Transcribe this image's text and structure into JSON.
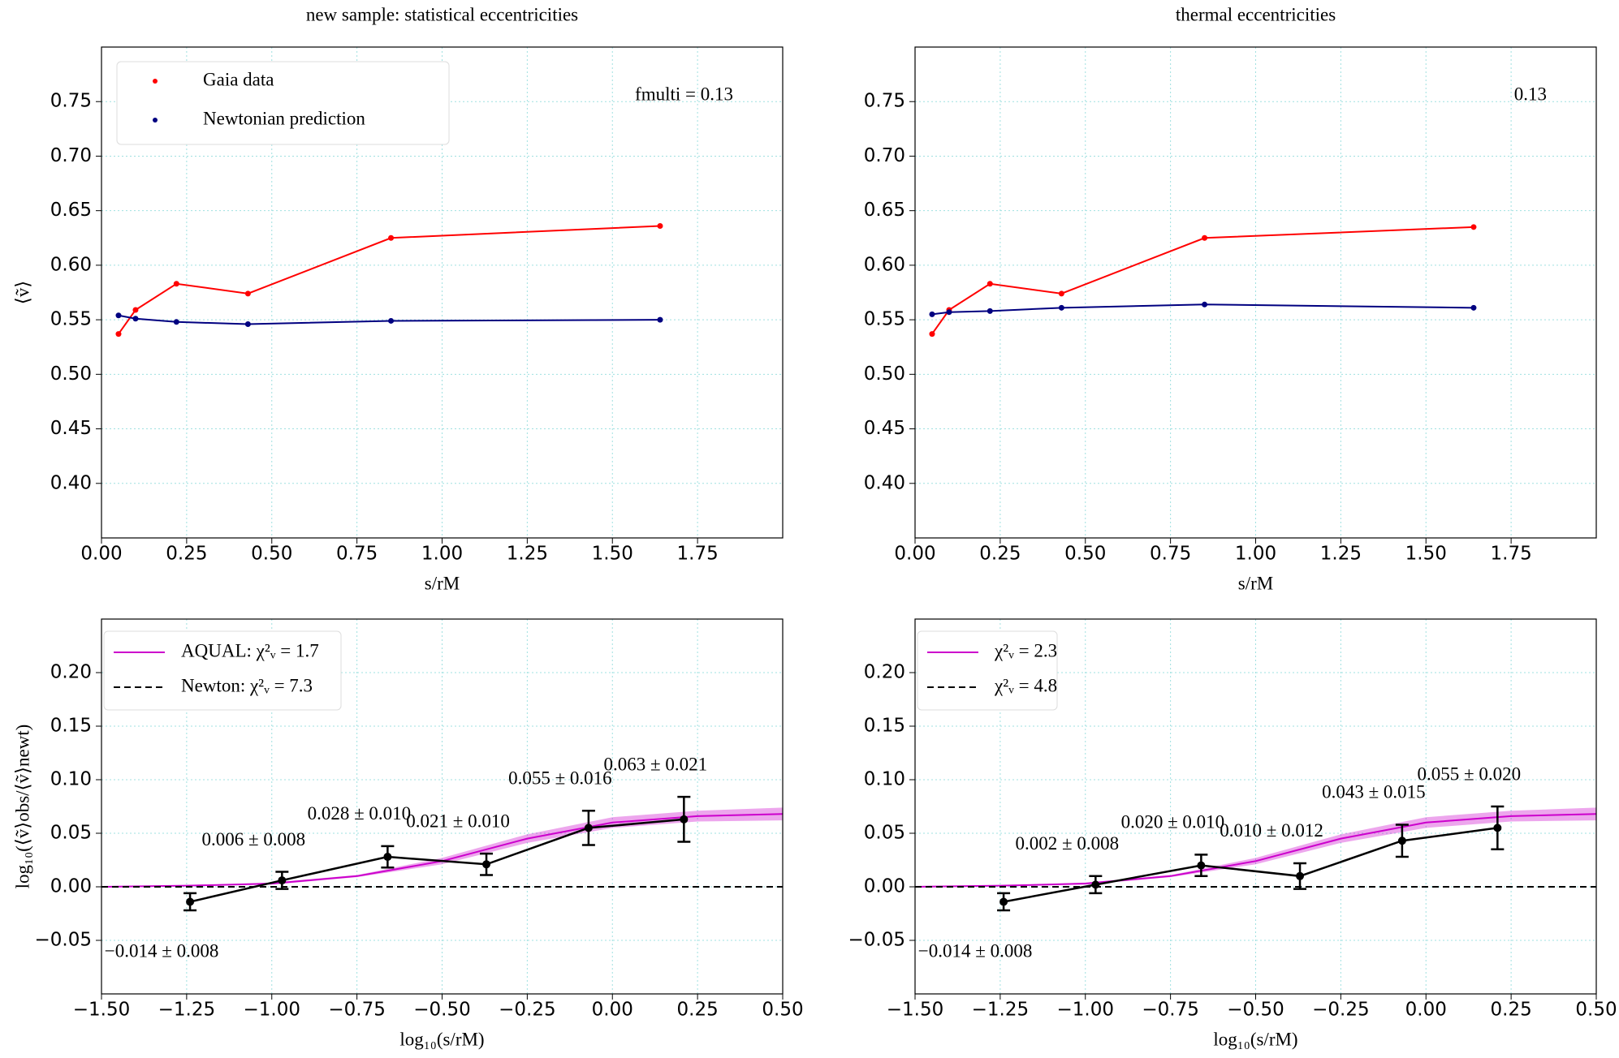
{
  "chart_data": [
    {
      "type": "line",
      "title": "new sample: statistical eccentricities",
      "ylabel": "⟨ṽ⟩",
      "xlabel": "s/rM",
      "annotation": "fmulti = 0.13",
      "legend": "upper left",
      "grid": true,
      "xlim": [
        0,
        2
      ],
      "ylim": [
        0.35,
        0.8
      ],
      "xticks": [
        {
          "value": 0,
          "label": "0.00"
        },
        0.25,
        {
          "value": 0.5,
          "label": "0.50"
        },
        0.75,
        {
          "value": 1,
          "label": "1.00"
        },
        1.25,
        {
          "value": 1.5,
          "label": "1.50"
        },
        1.75
      ],
      "yticks": [
        {
          "value": 0.4,
          "label": "0.40"
        },
        0.45,
        {
          "value": 0.5,
          "label": "0.50"
        },
        0.55,
        {
          "value": 0.6,
          "label": "0.60"
        },
        0.65,
        {
          "value": 0.7,
          "label": "0.70"
        },
        0.75
      ],
      "x": [
        0.05,
        0.1,
        0.22,
        0.43,
        0.85,
        1.64
      ],
      "series": [
        {
          "name": "Gaia data",
          "color": "#ff0000",
          "values": [
            0.537,
            0.559,
            0.583,
            0.574,
            0.625,
            0.636
          ]
        },
        {
          "name": "Newtonian prediction",
          "color": "#000080",
          "values": [
            0.554,
            0.551,
            0.548,
            0.546,
            0.549,
            0.55
          ]
        }
      ]
    },
    {
      "type": "line",
      "title": "thermal eccentricities",
      "annotation": "0.13",
      "xlabel": "s/rM",
      "grid": true,
      "xlim": [
        0,
        2
      ],
      "ylim": [
        0.35,
        0.8
      ],
      "xticks": [
        {
          "value": 0,
          "label": "0.00"
        },
        0.25,
        {
          "value": 0.5,
          "label": "0.50"
        },
        0.75,
        {
          "value": 1,
          "label": "1.00"
        },
        1.25,
        {
          "value": 1.5,
          "label": "1.50"
        },
        1.75
      ],
      "yticks": [
        {
          "value": 0.4,
          "label": "0.40"
        },
        0.45,
        {
          "value": 0.5,
          "label": "0.50"
        },
        0.55,
        {
          "value": 0.6,
          "label": "0.60"
        },
        0.65,
        {
          "value": 0.7,
          "label": "0.70"
        },
        0.75
      ],
      "x": [
        0.05,
        0.1,
        0.22,
        0.43,
        0.85,
        1.64
      ],
      "series": [
        {
          "color": "#ff0000",
          "values": [
            0.537,
            0.559,
            0.583,
            0.574,
            0.625,
            0.635
          ]
        },
        {
          "color": "#000080",
          "values": [
            0.555,
            0.557,
            0.558,
            0.561,
            0.564,
            0.561
          ]
        }
      ]
    },
    {
      "type": "errorbar",
      "ylabel": "log₁₀(⟨ṽ⟩obs/⟨ṽ⟩newt)",
      "xlabel": "log₁₀(s/rM)",
      "legend": "upper left",
      "grid": true,
      "xlim": [
        -1.5,
        0.5
      ],
      "ylim": [
        -0.1,
        0.25
      ],
      "xticks": [
        {
          "value": -1.5,
          "label": "−1.50"
        },
        {
          "value": -1.25,
          "label": "−1.25"
        },
        {
          "value": -1,
          "label": "−1.00"
        },
        {
          "value": -0.75,
          "label": "−0.75"
        },
        {
          "value": -0.5,
          "label": "−0.50"
        },
        {
          "value": -0.25,
          "label": "−0.25"
        },
        {
          "value": 0,
          "label": "0.00"
        },
        0.25,
        {
          "value": 0.5,
          "label": "0.50"
        }
      ],
      "yticks": [
        {
          "value": -0.05,
          "label": "−0.05"
        },
        {
          "value": 0,
          "label": "0.00"
        },
        0.05,
        {
          "value": 0.1,
          "label": "0.10"
        },
        0.15,
        {
          "value": 0.2,
          "label": "0.20"
        }
      ],
      "series": [
        {
          "name": "AQUAL: χ²ᵥ = 1.7",
          "color": "#cc00cc",
          "x": [
            -1.5,
            -1.25,
            -1.0,
            -0.75,
            -0.5,
            -0.25,
            0,
            0.25,
            0.5
          ],
          "values": [
            0,
            0.001,
            0.003,
            0.01,
            0.024,
            0.045,
            0.06,
            0.066,
            0.068
          ],
          "lower": [
            0,
            0.001,
            0.002,
            0.009,
            0.021,
            0.041,
            0.055,
            0.061,
            0.062
          ],
          "upper": [
            0,
            0.001,
            0.004,
            0.011,
            0.027,
            0.049,
            0.065,
            0.071,
            0.074
          ]
        },
        {
          "name": "Newton: χ²ᵥ = 7.3",
          "color": "#000000",
          "dashed": true,
          "x": [
            -1.5,
            0.5
          ],
          "values": [
            0,
            0
          ]
        }
      ],
      "points": {
        "color": "#000000",
        "x": [
          -1.24,
          -0.97,
          -0.66,
          -0.37,
          -0.07,
          0.21
        ],
        "values": [
          -0.014,
          0.006,
          0.028,
          0.021,
          0.055,
          0.063
        ],
        "errors": [
          0.008,
          0.008,
          0.01,
          0.01,
          0.016,
          0.021
        ],
        "value_labels": [
          "−0.014 ± 0.008",
          "0.006 ± 0.008",
          "0.028 ± 0.010",
          "0.021 ± 0.010",
          "0.055 ± 0.016",
          "0.063 ± 0.021"
        ]
      }
    },
    {
      "type": "errorbar",
      "xlabel": "log₁₀(s/rM)",
      "legend": "upper left",
      "grid": true,
      "xlim": [
        -1.5,
        0.5
      ],
      "ylim": [
        -0.1,
        0.25
      ],
      "xticks": [
        {
          "value": -1.5,
          "label": "−1.50"
        },
        {
          "value": -1.25,
          "label": "−1.25"
        },
        {
          "value": -1,
          "label": "−1.00"
        },
        {
          "value": -0.75,
          "label": "−0.75"
        },
        {
          "value": -0.5,
          "label": "−0.50"
        },
        {
          "value": -0.25,
          "label": "−0.25"
        },
        {
          "value": 0,
          "label": "0.00"
        },
        0.25,
        {
          "value": 0.5,
          "label": "0.50"
        }
      ],
      "yticks": [
        {
          "value": -0.05,
          "label": "−0.05"
        },
        {
          "value": 0,
          "label": "0.00"
        },
        0.05,
        {
          "value": 0.1,
          "label": "0.10"
        },
        0.15,
        {
          "value": 0.2,
          "label": "0.20"
        }
      ],
      "series": [
        {
          "name": "χ²ᵥ = 2.3",
          "color": "#cc00cc",
          "x": [
            -1.5,
            -1.25,
            -1.0,
            -0.75,
            -0.5,
            -0.25,
            0,
            0.25,
            0.5
          ],
          "values": [
            0,
            0.001,
            0.003,
            0.01,
            0.024,
            0.045,
            0.06,
            0.066,
            0.068
          ],
          "lower": [
            0,
            0.001,
            0.002,
            0.009,
            0.021,
            0.041,
            0.055,
            0.061,
            0.062
          ],
          "upper": [
            0,
            0.001,
            0.004,
            0.011,
            0.027,
            0.049,
            0.065,
            0.071,
            0.074
          ]
        },
        {
          "name": "χ²ᵥ = 4.8",
          "color": "#000000",
          "dashed": true,
          "x": [
            -1.5,
            0.5
          ],
          "values": [
            0,
            0
          ]
        }
      ],
      "points": {
        "color": "#000000",
        "x": [
          -1.24,
          -0.97,
          -0.66,
          -0.37,
          -0.07,
          0.21
        ],
        "values": [
          -0.014,
          0.002,
          0.02,
          0.01,
          0.043,
          0.055
        ],
        "errors": [
          0.008,
          0.008,
          0.01,
          0.012,
          0.015,
          0.02
        ],
        "value_labels": [
          "−0.014 ± 0.008",
          "0.002 ± 0.008",
          "0.020 ± 0.010",
          "0.010 ± 0.012",
          "0.043 ± 0.015",
          "0.055 ± 0.020"
        ]
      }
    }
  ]
}
